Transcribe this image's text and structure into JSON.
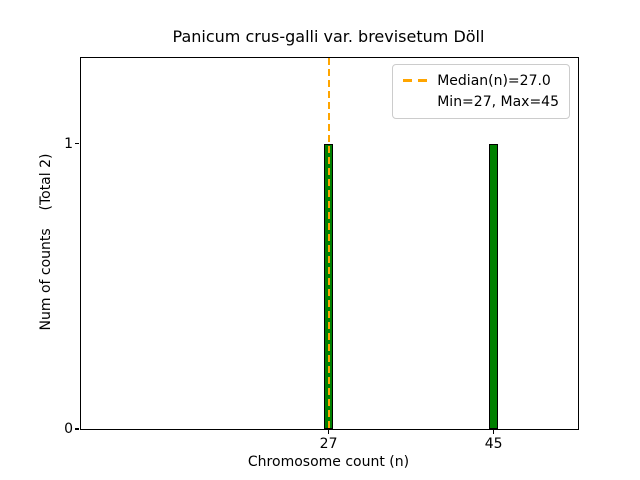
{
  "chart_data": {
    "type": "bar",
    "title": "Panicum crus-galli var. brevisetum Döll",
    "xlabel": "Chromosome count (n)",
    "ylabel": "Num of counts    (Total 2)",
    "categories": [
      27,
      45
    ],
    "values": [
      1,
      1
    ],
    "bar_width_units": 1,
    "xlim": [
      0,
      54.2
    ],
    "ylim": [
      0,
      1.3
    ],
    "xticks": [
      27,
      45
    ],
    "yticks": [
      0,
      1
    ],
    "grid": false,
    "legend_position": "upper-right",
    "total_counts": 2,
    "median": 27.0,
    "min": 27,
    "max": 45,
    "colors": {
      "bar_fill": "#008000",
      "bar_edge": "#000000",
      "median_line": "#FFA500",
      "axes": "#000000",
      "legend_border": "#cccccc",
      "text": "#000000"
    },
    "median_line": {
      "x": 27,
      "style": "dashed"
    },
    "legend": {
      "entries": [
        {
          "marker": "dashed-line",
          "color": "#FFA500",
          "label": "Median(n)=27.0"
        },
        {
          "marker": "none",
          "color": "",
          "label": "Min=27, Max=45"
        }
      ]
    }
  }
}
